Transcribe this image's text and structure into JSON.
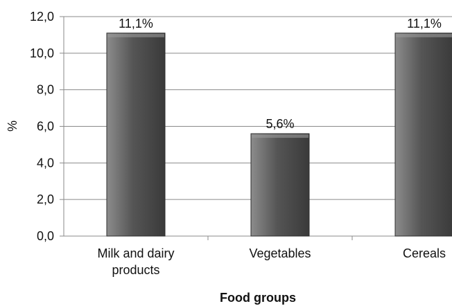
{
  "chart_data": {
    "type": "bar",
    "categories": [
      [
        "Milk and dairy",
        "products"
      ],
      [
        "Vegetables"
      ],
      [
        "Cereals"
      ]
    ],
    "values": [
      11.1,
      5.6,
      11.1
    ],
    "data_labels": [
      "11,1%",
      "5,6%",
      "11,1%"
    ],
    "title": "",
    "xlabel": "Food groups",
    "ylabel": "%",
    "ylim": [
      0,
      12
    ],
    "yticks": [
      "0,0",
      "2,0",
      "4,0",
      "6,0",
      "8,0",
      "10,0",
      "12,0"
    ],
    "grid": "horizontal",
    "legend": "none",
    "bar_color_light": "#8c8c8c",
    "bar_color_dark": "#3a3a3a"
  }
}
